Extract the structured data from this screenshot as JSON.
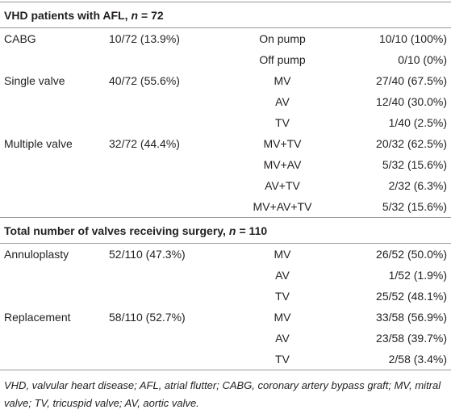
{
  "sections": [
    {
      "title": {
        "label": "VHD patients with AFL,",
        "var": "n",
        "value": "= 72"
      },
      "groups": [
        {
          "name": "CABG",
          "total": "10/72 (13.9%)",
          "items": [
            {
              "name": "On pump",
              "count": "10/10 (100%)"
            },
            {
              "name": "Off pump",
              "count": "0/10 (0%)"
            }
          ]
        },
        {
          "name": "Single valve",
          "total": "40/72 (55.6%)",
          "items": [
            {
              "name": "MV",
              "count": "27/40 (67.5%)"
            },
            {
              "name": "AV",
              "count": "12/40 (30.0%)"
            },
            {
              "name": "TV",
              "count": "1/40 (2.5%)"
            }
          ]
        },
        {
          "name": "Multiple valve",
          "total": "32/72 (44.4%)",
          "items": [
            {
              "name": "MV+TV",
              "count": "20/32 (62.5%)"
            },
            {
              "name": "MV+AV",
              "count": "5/32 (15.6%)"
            },
            {
              "name": "AV+TV",
              "count": "2/32 (6.3%)"
            },
            {
              "name": "MV+AV+TV",
              "count": "5/32 (15.6%)"
            }
          ]
        }
      ]
    },
    {
      "title": {
        "label": "Total number of valves receiving surgery,",
        "var": "n",
        "value": "= 110"
      },
      "groups": [
        {
          "name": "Annuloplasty",
          "total": "52/110 (47.3%)",
          "items": [
            {
              "name": "MV",
              "count": "26/52 (50.0%)"
            },
            {
              "name": "AV",
              "count": "1/52 (1.9%)"
            },
            {
              "name": "TV",
              "count": "25/52 (48.1%)"
            }
          ]
        },
        {
          "name": "Replacement",
          "total": "58/110 (52.7%)",
          "items": [
            {
              "name": "MV",
              "count": "33/58 (56.9%)"
            },
            {
              "name": "AV",
              "count": "23/58 (39.7%)"
            },
            {
              "name": "TV",
              "count": "2/58 (3.4%)"
            }
          ]
        }
      ]
    }
  ],
  "footnote": "VHD, valvular heart disease; AFL, atrial flutter; CABG, coronary artery bypass graft; MV, mitral valve; TV, tricuspid valve; AV, aortic valve."
}
